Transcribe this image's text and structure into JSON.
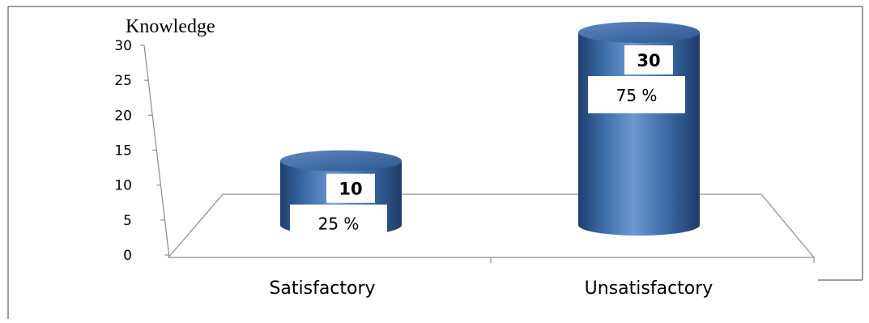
{
  "chart_data": {
    "type": "bar",
    "title": "Knowledge",
    "categories": [
      "Satisfactory",
      "Unsatisfactory"
    ],
    "values": [
      10,
      30
    ],
    "percent_labels": [
      "25 %",
      "75 %"
    ],
    "ylim": [
      0,
      30
    ],
    "yticks": [
      "0",
      "5",
      "10",
      "15",
      "20",
      "25",
      "30"
    ],
    "grid": false,
    "legend": "none",
    "colors": {
      "bar": "#3f6fad",
      "bar_dark": "#1f3f6e",
      "bar_light": "#8fb0da"
    }
  }
}
